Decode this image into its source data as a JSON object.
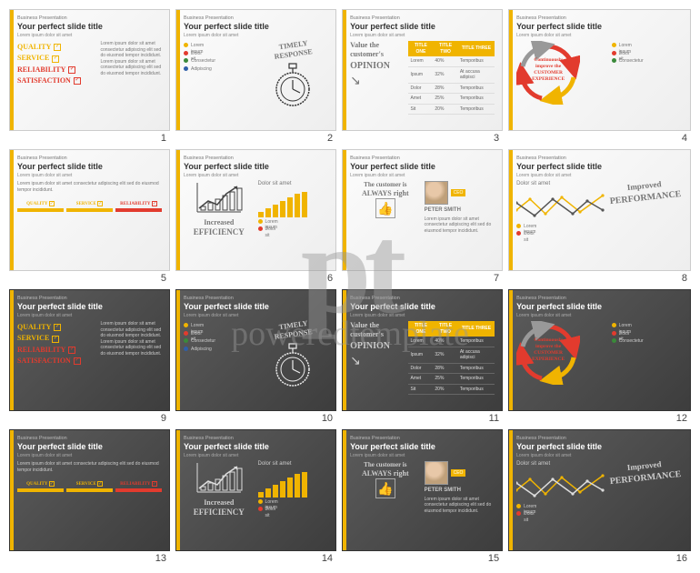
{
  "common": {
    "pretitle": "Business Presentation",
    "title": "Your perfect slide title",
    "sub": "Lorem ipsum dolor sit amet",
    "accent_color": "#f0b400",
    "dark_bg_from": "#5c5c5c",
    "dark_bg_to": "#3d3d3d",
    "light_bg_from": "#fcfcfc",
    "light_bg_to": "#eeeeee",
    "text_light": "#333333",
    "text_dark": "#ffffff"
  },
  "watermark": {
    "top": "pt",
    "bottom": "poweredtemplate"
  },
  "quality_words": [
    {
      "label": "QUALITY",
      "color": "#f0b400"
    },
    {
      "label": "SERVICE",
      "color": "#f0b400"
    },
    {
      "label": "RELIABILITY",
      "color": "#e23b2e"
    },
    {
      "label": "SATISFACTION",
      "color": "#e23b2e"
    }
  ],
  "box_labels": [
    {
      "label": "QUALITY",
      "color": "#f0b400"
    },
    {
      "label": "SERVICE",
      "color": "#f0b400"
    },
    {
      "label": "RELIABILITY",
      "color": "#e23b2e"
    }
  ],
  "timely": {
    "upper": "TIMELY",
    "lower": "RESPONSE"
  },
  "opinion": {
    "line1": "Value the",
    "line2": "customer's",
    "line3": "OPINION"
  },
  "customer_right": {
    "l1": "The customer is",
    "l2": "ALWAYS right"
  },
  "efficiency": {
    "l1": "Increased",
    "l2": "EFFICIENCY"
  },
  "performance": {
    "l1": "Improved",
    "l2": "PERFORMANCE"
  },
  "cycle_center": {
    "l1": "Continuously",
    "l2": "improve the",
    "l3": "CUSTOMER",
    "l4": "EXPERIENCE"
  },
  "cycle_colors": [
    "#e23b2e",
    "#f0b400",
    "#999999"
  ],
  "chart_header": "Dolor sit amet",
  "table": {
    "headers": [
      "TITLE ONE",
      "TITLE TWO",
      "TITLE THREE"
    ],
    "rows": [
      [
        "Lorem",
        "40%",
        "Temporibus"
      ],
      [
        "Ipsum",
        "32%",
        "At accusa adipisci"
      ],
      [
        "Dolor",
        "28%",
        "Temporibus"
      ],
      [
        "Amet",
        "25%",
        "Temporibus"
      ],
      [
        "Sit",
        "20%",
        "Temporibus"
      ]
    ]
  },
  "person": {
    "name": "PETER SMITH",
    "role": "CEO"
  },
  "bars": {
    "type": "bar",
    "values": [
      6,
      10,
      14,
      18,
      22,
      26,
      28
    ],
    "color": "#f0b400"
  },
  "linechart": {
    "type": "line",
    "series": [
      {
        "color": "#f0b400",
        "points": [
          [
            0,
            22
          ],
          [
            15,
            10
          ],
          [
            32,
            26
          ],
          [
            50,
            8
          ],
          [
            70,
            24
          ],
          [
            95,
            6
          ]
        ]
      },
      {
        "color": "#555555",
        "points": [
          [
            0,
            14
          ],
          [
            20,
            28
          ],
          [
            40,
            10
          ],
          [
            62,
            26
          ],
          [
            78,
            12
          ],
          [
            95,
            22
          ]
        ]
      }
    ]
  },
  "legend_dots": [
    {
      "color": "#f0b400",
      "label": "Lorem ipsum"
    },
    {
      "color": "#e23b2e",
      "label": "Dolor sit"
    },
    {
      "color": "#3a8a3a",
      "label": "Consectetur"
    },
    {
      "color": "#2f5fa8",
      "label": "Adipiscing"
    }
  ],
  "two_dots": [
    {
      "color": "#f0b400",
      "label": "Lorem ipsum"
    },
    {
      "color": "#e23b2e",
      "label": "Dolor sit"
    }
  ]
}
